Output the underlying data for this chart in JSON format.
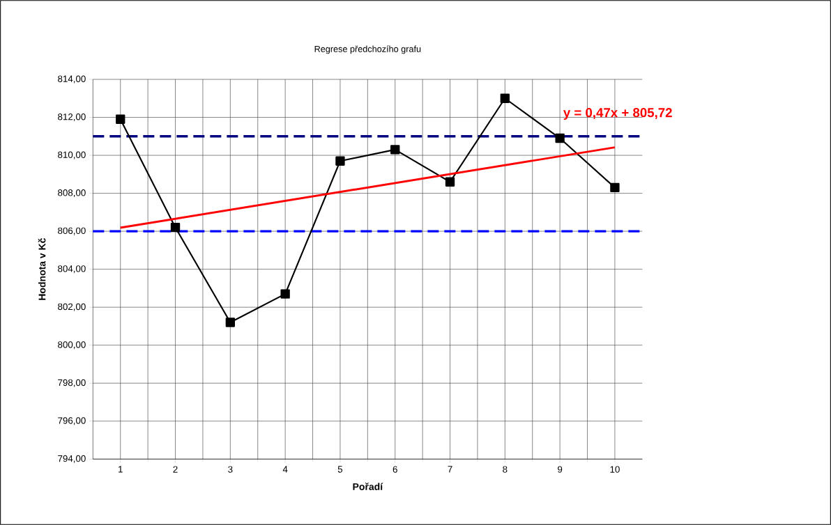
{
  "chart_data": {
    "type": "line",
    "title": "Regrese předchozího grafu",
    "xlabel": "Pořadí",
    "ylabel": "Hodnota v Kč",
    "x": [
      1,
      2,
      3,
      4,
      5,
      6,
      7,
      8,
      9,
      10
    ],
    "series": [
      {
        "color": "#000000",
        "values": [
          811.9,
          806.2,
          801.2,
          802.7,
          809.7,
          810.3,
          808.6,
          813.0,
          810.9,
          808.3
        ]
      },
      {
        "type": "line",
        "color": "#ff0000",
        "marker": "none",
        "x": [
          1,
          10
        ],
        "values": [
          806.19,
          810.42
        ]
      }
    ],
    "xlim": [
      0.5,
      10.5
    ],
    "xticks": [
      1,
      2,
      3,
      4,
      5,
      6,
      7,
      8,
      9,
      10
    ],
    "ylim": [
      794,
      814
    ],
    "yticks": [
      {
        "value": 794,
        "label": "794,00"
      },
      {
        "value": 796,
        "label": "796,00"
      },
      {
        "value": 798,
        "label": "798,00"
      },
      {
        "value": 800,
        "label": "800,00"
      },
      {
        "value": 802,
        "label": "802,00"
      },
      {
        "value": 804,
        "label": "804,00"
      },
      {
        "value": 806,
        "label": "806,00"
      },
      {
        "value": 808,
        "label": "808,00"
      },
      {
        "value": 810,
        "label": "810,00"
      },
      {
        "value": 812,
        "label": "812,00"
      },
      {
        "value": 814,
        "label": "814,00"
      }
    ],
    "ref_lines": [
      {
        "axis": "y",
        "value": 811,
        "color": "#000080",
        "line_style": "dashed"
      },
      {
        "axis": "y",
        "value": 806,
        "color": "#0000ff",
        "line_style": "dashed"
      }
    ],
    "annotations": [
      "y = 0,47x + 805,72"
    ],
    "grid": true,
    "marker": "square",
    "line_style": "solid"
  }
}
